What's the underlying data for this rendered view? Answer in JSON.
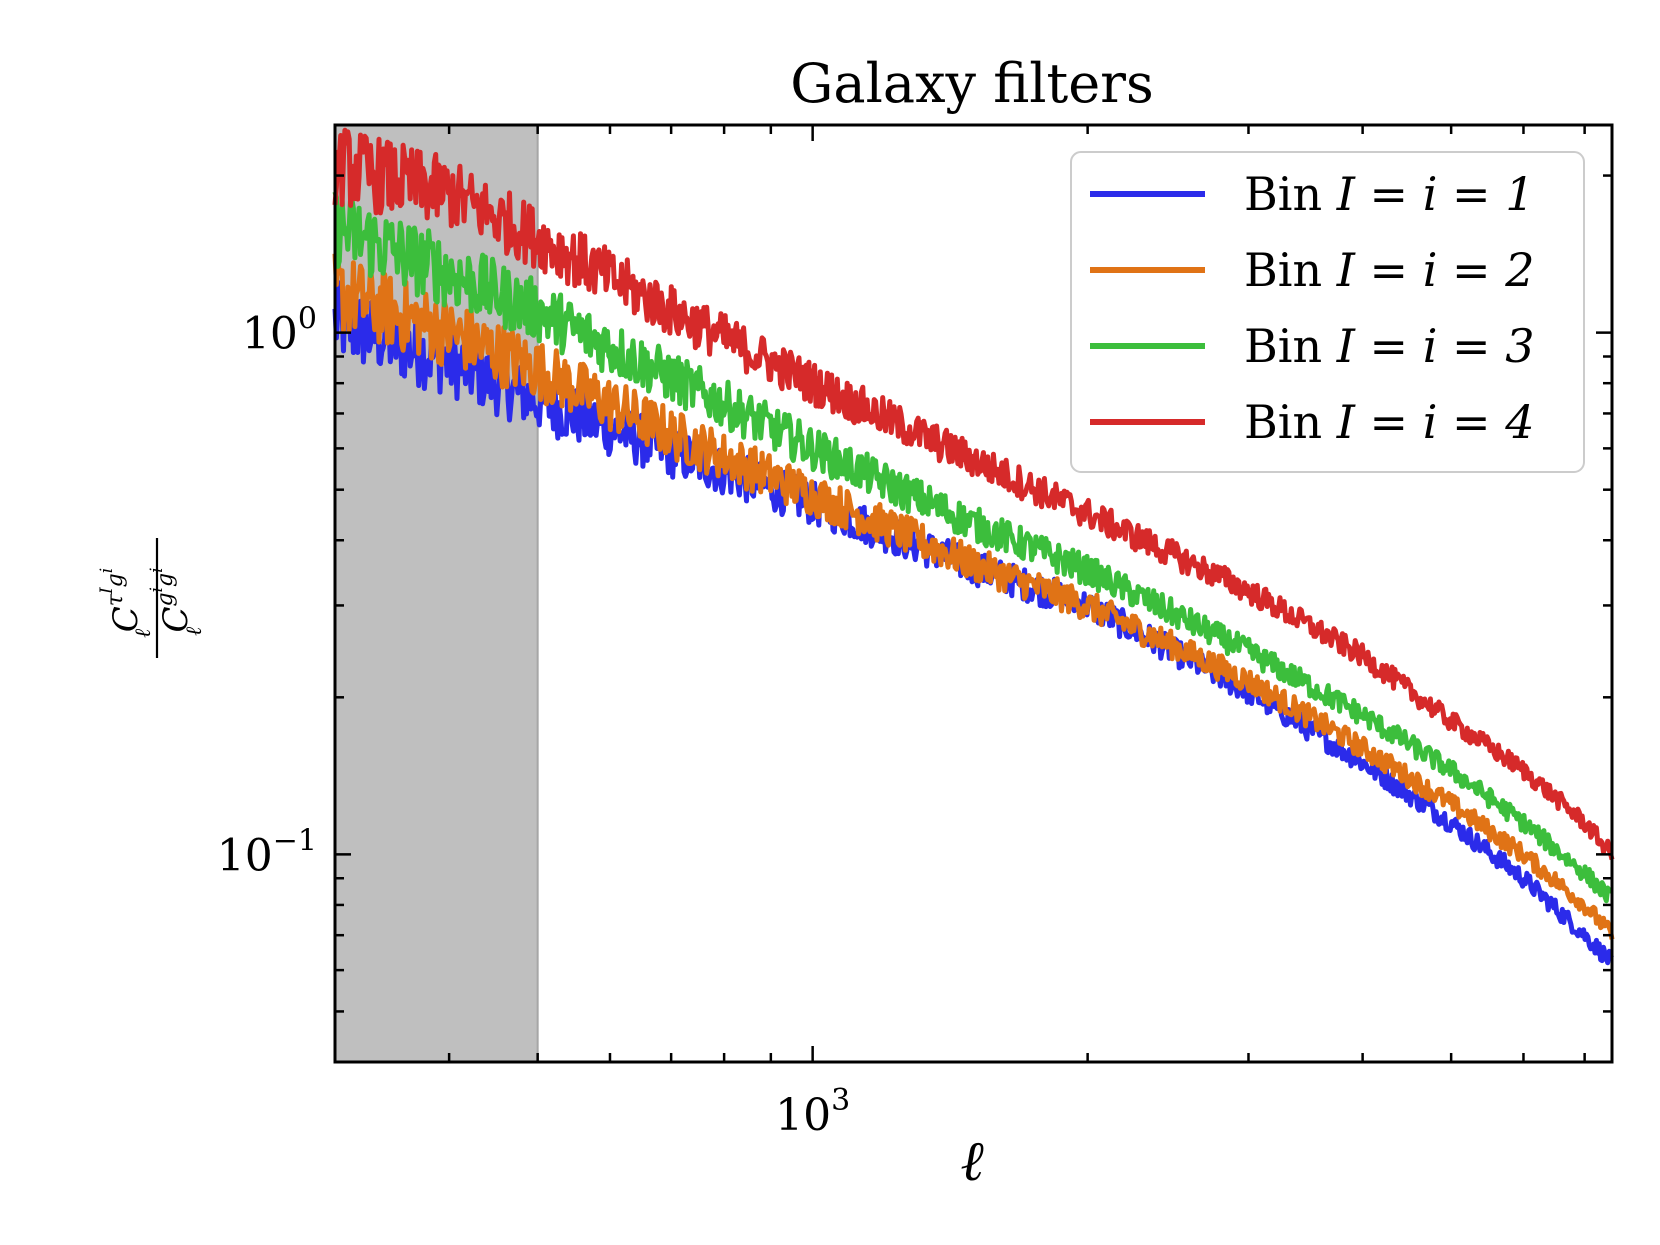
{
  "chart_data": {
    "type": "line",
    "title": "Galaxy filters",
    "xlabel": "ℓ",
    "ylabel": {
      "numerator": {
        "base": "C",
        "sub": "ℓ",
        "sup": "τ",
        "sup_sup": "I",
        "sup2": "g",
        "sup2_sup": "i"
      },
      "denominator": {
        "base": "C",
        "sub": "ℓ",
        "sup": "g",
        "sup_sup": "i",
        "sup2": "g",
        "sup2_sup": "i"
      }
    },
    "xscale": "log",
    "yscale": "log",
    "xlim": [
      300,
      7500
    ],
    "ylim": [
      0.04,
      2.5
    ],
    "x_ticks": [
      {
        "value": 1000,
        "base": "10",
        "exp": "3"
      }
    ],
    "y_ticks": [
      {
        "value": 1,
        "base": "10",
        "exp": "0"
      },
      {
        "value": 0.1,
        "base": "10",
        "exp": "−1"
      }
    ],
    "shaded_region": {
      "x_range": [
        300,
        500
      ],
      "color": "#bfbfbf"
    },
    "legend": {
      "location": "top-right",
      "entries": [
        {
          "label_prefix": "Bin",
          "label_math": "I = i = 1"
        },
        {
          "label_prefix": "Bin",
          "label_math": "I = i = 2"
        },
        {
          "label_prefix": "Bin",
          "label_math": "I = i = 3"
        },
        {
          "label_prefix": "Bin",
          "label_math": "I = i = 4"
        }
      ]
    },
    "series": [
      {
        "name": "Bin I = i = 1",
        "color": "#2b2bea",
        "x": [
          300,
          400,
          500,
          700,
          1000,
          1500,
          2000,
          3000,
          4000,
          5000,
          6000,
          7000,
          7500
        ],
        "y": [
          1.05,
          0.88,
          0.74,
          0.59,
          0.47,
          0.355,
          0.3,
          0.205,
          0.15,
          0.115,
          0.09,
          0.07,
          0.062
        ]
      },
      {
        "name": "Bin I = i = 2",
        "color": "#e07316",
        "x": [
          300,
          400,
          500,
          700,
          1000,
          1500,
          2000,
          3000,
          4000,
          5000,
          6000,
          7000,
          7500
        ],
        "y": [
          1.2,
          1.0,
          0.85,
          0.64,
          0.49,
          0.36,
          0.3,
          0.215,
          0.16,
          0.125,
          0.1,
          0.08,
          0.07
        ]
      },
      {
        "name": "Bin I = i = 3",
        "color": "#3cbe3c",
        "x": [
          300,
          400,
          500,
          700,
          1000,
          1500,
          2000,
          3000,
          4000,
          5000,
          6000,
          7000,
          7500
        ],
        "y": [
          1.6,
          1.3,
          1.1,
          0.82,
          0.6,
          0.43,
          0.35,
          0.245,
          0.185,
          0.145,
          0.115,
          0.092,
          0.082
        ]
      },
      {
        "name": "Bin I = i = 4",
        "color": "#d62a2a",
        "x": [
          300,
          400,
          500,
          700,
          1000,
          1500,
          2000,
          3000,
          4000,
          5000,
          6000,
          7000,
          7500
        ],
        "y": [
          2.1,
          1.85,
          1.52,
          1.1,
          0.8,
          0.57,
          0.45,
          0.32,
          0.24,
          0.18,
          0.145,
          0.115,
          0.1
        ]
      }
    ]
  }
}
